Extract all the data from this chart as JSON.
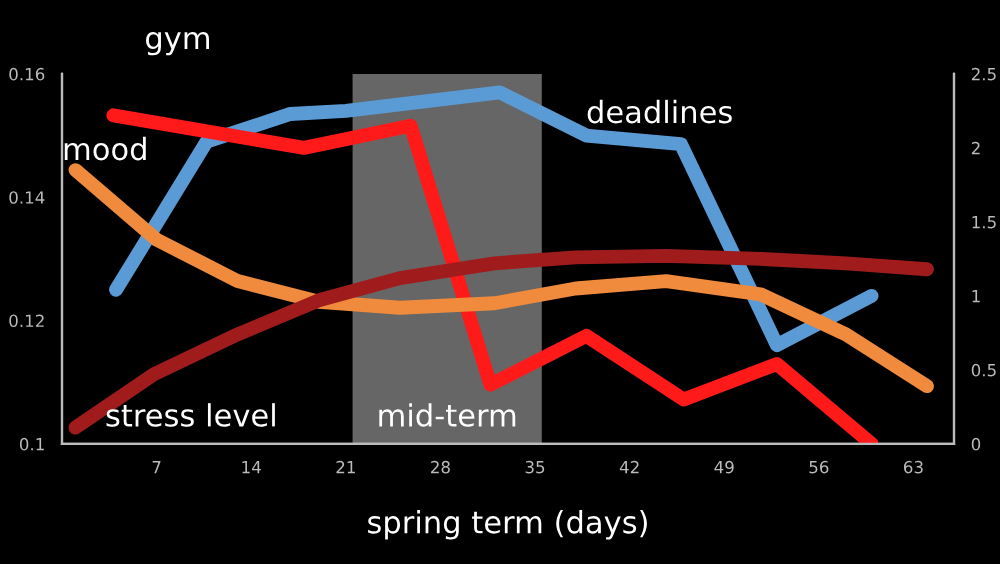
{
  "chart_data": {
    "type": "line",
    "xlabel": "spring term (days)",
    "xlim": [
      0,
      66
    ],
    "xticks": [
      7,
      14,
      21,
      28,
      35,
      42,
      49,
      56,
      63
    ],
    "ylim": [
      0.1,
      0.16
    ],
    "yticks": [
      {
        "value": 0.1,
        "label": "0.1"
      },
      0.12,
      0.14,
      0.16
    ],
    "y2lim": [
      0,
      2.5
    ],
    "y2ticks": [
      0,
      0.5,
      1,
      1.5,
      2,
      2.5
    ],
    "grid": false,
    "legend": false,
    "marker": "none",
    "line_style": "solid",
    "bands": [
      {
        "axis": "x",
        "from": 21.5,
        "to": 35.5,
        "label": "mid-term",
        "color": "#666666"
      }
    ],
    "series": [
      {
        "name": "gym",
        "color": "#ff1a1a",
        "axis": "y2",
        "x": [
          3.8,
          17.9,
          25.8,
          31.7,
          38.8,
          46,
          52.9,
          59.9
        ],
        "values": [
          2.22,
          2.0,
          2.15,
          0.4,
          0.73,
          0.3,
          0.54,
          0
        ]
      },
      {
        "name": "deadlines",
        "color": "#5b9bd5",
        "axis": "y",
        "x": [
          4,
          10.7,
          16.9,
          21,
          32.4,
          38.8,
          45.8,
          52.9,
          59.9
        ],
        "values": [
          0.125,
          0.149,
          0.1535,
          0.154,
          0.157,
          0.15,
          0.1486,
          0.116,
          0.124
        ]
      },
      {
        "name": "mood",
        "color": "#f08a3c",
        "axis": "y2",
        "x": [
          1,
          7,
          13,
          19,
          25,
          32,
          38,
          44.7,
          51.7,
          58,
          64
        ],
        "values": [
          1.85,
          1.38,
          1.1,
          0.96,
          0.92,
          0.95,
          1.05,
          1.1,
          1.01,
          0.74,
          0.39
        ]
      },
      {
        "name": "stress level",
        "color": "#a01c1c",
        "axis": "y2",
        "x": [
          1,
          6.8,
          13,
          19,
          25,
          32,
          38,
          44.7,
          51.7,
          58,
          64
        ],
        "values": [
          0.11,
          0.47,
          0.74,
          0.97,
          1.12,
          1.22,
          1.26,
          1.27,
          1.25,
          1.22,
          1.18
        ]
      }
    ]
  }
}
